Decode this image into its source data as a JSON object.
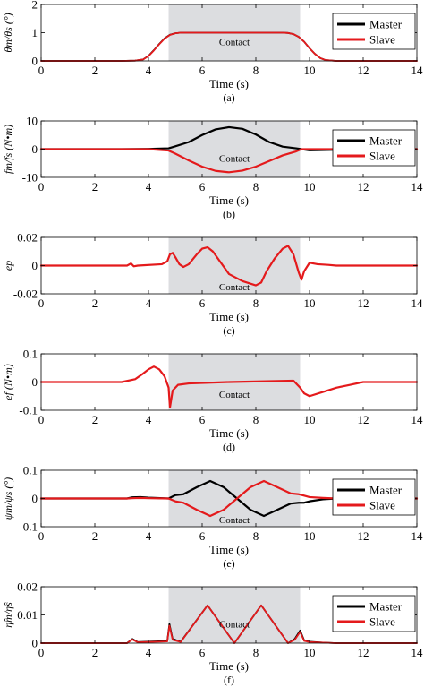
{
  "figure": {
    "background": "#ffffff",
    "contact_shade": "#dcdde0"
  },
  "colors": {
    "Master": "#000000",
    "Slave": "#e41a1c"
  },
  "chart_data": [
    {
      "id": "a",
      "type": "line",
      "caption": "(a)",
      "ylabel": "θm/θs (°)",
      "xlabel": "Time (s)",
      "xlim": [
        0,
        14
      ],
      "ylim": [
        0,
        2
      ],
      "xticks": [
        0,
        2,
        4,
        6,
        8,
        10,
        12,
        14
      ],
      "yticks": [
        0,
        1,
        2
      ],
      "contact_region": [
        4.75,
        9.65
      ],
      "contact_label": "Contact",
      "legend": {
        "position": "top-right",
        "entries": [
          "Master",
          "Slave"
        ]
      },
      "series": [
        {
          "name": "Master",
          "x": [
            0,
            3,
            3.5,
            3.8,
            4.0,
            4.2,
            4.4,
            4.6,
            4.8,
            5.0,
            5.2,
            6,
            7,
            8,
            9,
            9.2,
            9.4,
            9.6,
            9.8,
            10.0,
            10.2,
            10.4,
            10.6,
            11,
            14
          ],
          "y": [
            0,
            0,
            0.01,
            0.05,
            0.18,
            0.38,
            0.6,
            0.8,
            0.93,
            0.98,
            1.0,
            1.0,
            1.0,
            1.0,
            1.0,
            0.99,
            0.95,
            0.85,
            0.68,
            0.45,
            0.25,
            0.1,
            0.03,
            0,
            0
          ]
        },
        {
          "name": "Slave",
          "x": [
            0,
            3,
            3.5,
            3.8,
            4.0,
            4.2,
            4.4,
            4.6,
            4.8,
            5.0,
            5.2,
            6,
            7,
            8,
            9,
            9.2,
            9.4,
            9.6,
            9.8,
            10.0,
            10.2,
            10.4,
            10.6,
            11,
            14
          ],
          "y": [
            0,
            0,
            0.01,
            0.05,
            0.17,
            0.37,
            0.59,
            0.79,
            0.92,
            0.98,
            1.0,
            1.0,
            1.0,
            1.0,
            1.0,
            0.99,
            0.95,
            0.85,
            0.68,
            0.45,
            0.25,
            0.1,
            0.03,
            0,
            0
          ]
        }
      ]
    },
    {
      "id": "b",
      "type": "line",
      "caption": "(b)",
      "ylabel": "fm/fs (N•m)",
      "xlabel": "Time (s)",
      "xlim": [
        0,
        14
      ],
      "ylim": [
        -10,
        10
      ],
      "xticks": [
        0,
        2,
        4,
        6,
        8,
        10,
        12,
        14
      ],
      "yticks": [
        -10,
        0,
        10
      ],
      "contact_region": [
        4.75,
        9.65
      ],
      "contact_label": "Contact",
      "legend": {
        "position": "top-right",
        "entries": [
          "Master",
          "Slave"
        ]
      },
      "series": [
        {
          "name": "Master",
          "x": [
            0,
            3,
            4,
            4.75,
            5.0,
            5.5,
            6.0,
            6.5,
            7.0,
            7.5,
            8.0,
            8.5,
            9.0,
            9.5,
            9.7,
            10,
            11,
            14
          ],
          "y": [
            0,
            0,
            0.1,
            0.3,
            1.0,
            2.5,
            5.0,
            7.0,
            7.8,
            7.2,
            5.2,
            2.5,
            0.9,
            0.3,
            0,
            -0.4,
            -0.2,
            0
          ]
        },
        {
          "name": "Slave",
          "x": [
            0,
            3,
            4,
            4.75,
            5.0,
            5.5,
            6.0,
            6.5,
            7.0,
            7.5,
            8.0,
            8.5,
            9.0,
            9.5,
            9.7,
            10,
            11,
            14
          ],
          "y": [
            0,
            0,
            0,
            -0.5,
            -1.6,
            -4.0,
            -6.2,
            -7.7,
            -8.2,
            -7.6,
            -6.2,
            -4.2,
            -2.2,
            -0.8,
            0,
            0,
            0,
            0
          ]
        }
      ]
    },
    {
      "id": "c",
      "type": "line",
      "caption": "(c)",
      "ylabel": "ep",
      "xlabel": "Time (s)",
      "xlim": [
        0,
        14
      ],
      "ylim": [
        -0.02,
        0.02
      ],
      "xticks": [
        0,
        2,
        4,
        6,
        8,
        10,
        12,
        14
      ],
      "yticks": [
        -0.02,
        0,
        0.02
      ],
      "contact_region": [
        4.75,
        9.65
      ],
      "contact_label": "Contact",
      "series": [
        {
          "name": "ep",
          "x": [
            0,
            3.2,
            3.35,
            3.45,
            3.6,
            4.5,
            4.7,
            4.8,
            4.9,
            5.0,
            5.15,
            5.3,
            5.5,
            5.8,
            6.0,
            6.2,
            6.4,
            6.7,
            7.0,
            7.5,
            8.0,
            8.2,
            8.4,
            8.7,
            9.0,
            9.2,
            9.4,
            9.6,
            9.7,
            9.8,
            10.0,
            10.3,
            10.7,
            11,
            14
          ],
          "y": [
            0,
            0,
            0.0015,
            -0.0005,
            0,
            0.001,
            0.003,
            0.008,
            0.009,
            0.006,
            0.001,
            -0.001,
            0.001,
            0.008,
            0.012,
            0.013,
            0.01,
            0.002,
            -0.006,
            -0.011,
            -0.014,
            -0.012,
            -0.004,
            0.005,
            0.012,
            0.014,
            0.008,
            -0.005,
            -0.01,
            -0.004,
            0.002,
            0.001,
            0.0005,
            0,
            0
          ]
        }
      ]
    },
    {
      "id": "d",
      "type": "line",
      "caption": "(d)",
      "ylabel": "ef (N•m)",
      "xlabel": "Time (s)",
      "xlim": [
        0,
        14
      ],
      "ylim": [
        -0.1,
        0.1
      ],
      "xticks": [
        0,
        2,
        4,
        6,
        8,
        10,
        12,
        14
      ],
      "yticks": [
        -0.1,
        0,
        0.1
      ],
      "contact_region": [
        4.75,
        9.65
      ],
      "contact_label": "Contact",
      "series": [
        {
          "name": "ef",
          "x": [
            0,
            3.0,
            3.5,
            3.8,
            4.0,
            4.2,
            4.4,
            4.6,
            4.75,
            4.8,
            4.9,
            5.1,
            5.5,
            7,
            9.4,
            9.65,
            9.8,
            10.0,
            10.5,
            11.0,
            11.5,
            12,
            14
          ],
          "y": [
            0,
            0,
            0.01,
            0.03,
            0.045,
            0.055,
            0.045,
            0.02,
            -0.02,
            -0.09,
            -0.03,
            -0.01,
            -0.005,
            0,
            0.005,
            -0.02,
            -0.04,
            -0.05,
            -0.035,
            -0.02,
            -0.01,
            0,
            0
          ]
        }
      ]
    },
    {
      "id": "e",
      "type": "line",
      "caption": "(e)",
      "ylabel": "ψm/ψs (°)",
      "xlabel": "Time (s)",
      "xlim": [
        0,
        14
      ],
      "ylim": [
        -0.1,
        0.1
      ],
      "xticks": [
        0,
        2,
        4,
        6,
        8,
        10,
        12,
        14
      ],
      "yticks": [
        -0.1,
        0,
        0.1
      ],
      "contact_region": [
        4.75,
        9.65
      ],
      "contact_label": "Contact",
      "legend": {
        "position": "top-right",
        "entries": [
          "Master",
          "Slave"
        ]
      },
      "series": [
        {
          "name": "Master",
          "x": [
            0,
            3.2,
            3.4,
            3.7,
            4.0,
            4.75,
            5.0,
            5.3,
            5.8,
            6.3,
            6.8,
            7.3,
            7.8,
            8.3,
            8.8,
            9.3,
            9.6,
            9.8,
            10.0,
            10.5,
            11.0,
            12,
            14
          ],
          "y": [
            0,
            0,
            0.004,
            0.005,
            0.003,
            0,
            0.012,
            0.015,
            0.04,
            0.062,
            0.04,
            0.0,
            -0.04,
            -0.062,
            -0.04,
            -0.018,
            -0.015,
            -0.015,
            -0.01,
            -0.003,
            0,
            0,
            0
          ]
        },
        {
          "name": "Slave",
          "x": [
            0,
            3.2,
            3.4,
            3.7,
            4.0,
            4.75,
            5.0,
            5.3,
            5.8,
            6.3,
            6.8,
            7.3,
            7.8,
            8.3,
            8.8,
            9.3,
            9.6,
            9.8,
            10.0,
            10.5,
            11.0,
            12,
            14
          ],
          "y": [
            0,
            0,
            0.001,
            0.002,
            0.001,
            0,
            -0.01,
            -0.015,
            -0.04,
            -0.062,
            -0.04,
            0.0,
            0.04,
            0.062,
            0.04,
            0.018,
            0.015,
            0.01,
            0.005,
            0.002,
            0,
            0,
            0
          ]
        }
      ]
    },
    {
      "id": "f",
      "type": "line",
      "caption": "(f)",
      "ylabel": "η̂m/η̂s",
      "xlabel": "Time (s)",
      "xlim": [
        0,
        14
      ],
      "ylim": [
        0,
        0.02
      ],
      "xticks": [
        0,
        2,
        4,
        6,
        8,
        10,
        12,
        14
      ],
      "yticks": [
        0,
        0.01,
        0.02
      ],
      "contact_region": [
        4.75,
        9.65
      ],
      "contact_label": "Contact",
      "legend": {
        "position": "top-right",
        "entries": [
          "Master",
          "Slave"
        ]
      },
      "series": [
        {
          "name": "Master",
          "x": [
            0,
            3.2,
            3.4,
            3.6,
            4.7,
            4.78,
            4.9,
            5.2,
            6.2,
            7.2,
            8.2,
            9.2,
            9.45,
            9.65,
            9.8,
            10.0,
            10.5,
            11,
            14
          ],
          "y": [
            0,
            0,
            0.0015,
            0.0004,
            0.0008,
            0.0068,
            0.0015,
            0.0005,
            0.0134,
            0,
            0.0134,
            0,
            0.0015,
            0.0045,
            0.001,
            0.0005,
            0.0002,
            0,
            0
          ]
        },
        {
          "name": "Slave",
          "x": [
            0,
            3.2,
            3.4,
            3.6,
            4.7,
            4.78,
            4.9,
            5.2,
            6.2,
            7.2,
            8.2,
            9.2,
            9.45,
            9.65,
            9.8,
            10.0,
            10.5,
            11,
            14
          ],
          "y": [
            0,
            0,
            0.0013,
            0.0003,
            0.0006,
            0.0062,
            0.0012,
            0.0004,
            0.0134,
            0,
            0.0134,
            0,
            0.0012,
            0.004,
            0.0008,
            0.0004,
            0.0002,
            0,
            0
          ]
        }
      ]
    }
  ]
}
